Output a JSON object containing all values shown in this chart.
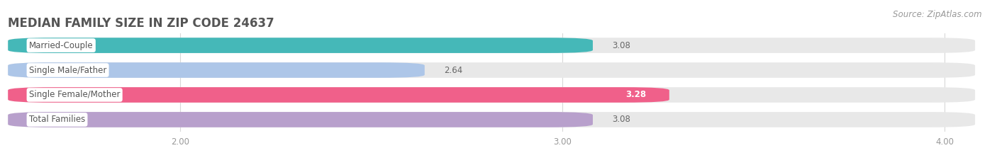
{
  "title": "MEDIAN FAMILY SIZE IN ZIP CODE 24637",
  "source": "Source: ZipAtlas.com",
  "categories": [
    "Married-Couple",
    "Single Male/Father",
    "Single Female/Mother",
    "Total Families"
  ],
  "values": [
    3.08,
    2.64,
    3.28,
    3.08
  ],
  "bar_colors": [
    "#45b8b8",
    "#adc6e8",
    "#f0608a",
    "#b8a0cc"
  ],
  "bar_bg_color": "#e8e8e8",
  "value_inside": [
    false,
    false,
    true,
    false
  ],
  "xlim_left": 1.55,
  "xlim_right": 4.08,
  "xticks": [
    2.0,
    3.0,
    4.0
  ],
  "xtick_labels": [
    "2.00",
    "3.00",
    "4.00"
  ],
  "background_color": "#ffffff",
  "title_fontsize": 12,
  "label_fontsize": 8.5,
  "value_fontsize": 8.5,
  "source_fontsize": 8.5,
  "bar_height": 0.62,
  "bar_gap": 0.38,
  "label_bg_color": "#ffffff",
  "title_color": "#555555",
  "label_color": "#555555",
  "value_outside_color": "#666666",
  "value_inside_color": "#ffffff",
  "grid_color": "#d8d8d8",
  "tick_color": "#999999"
}
